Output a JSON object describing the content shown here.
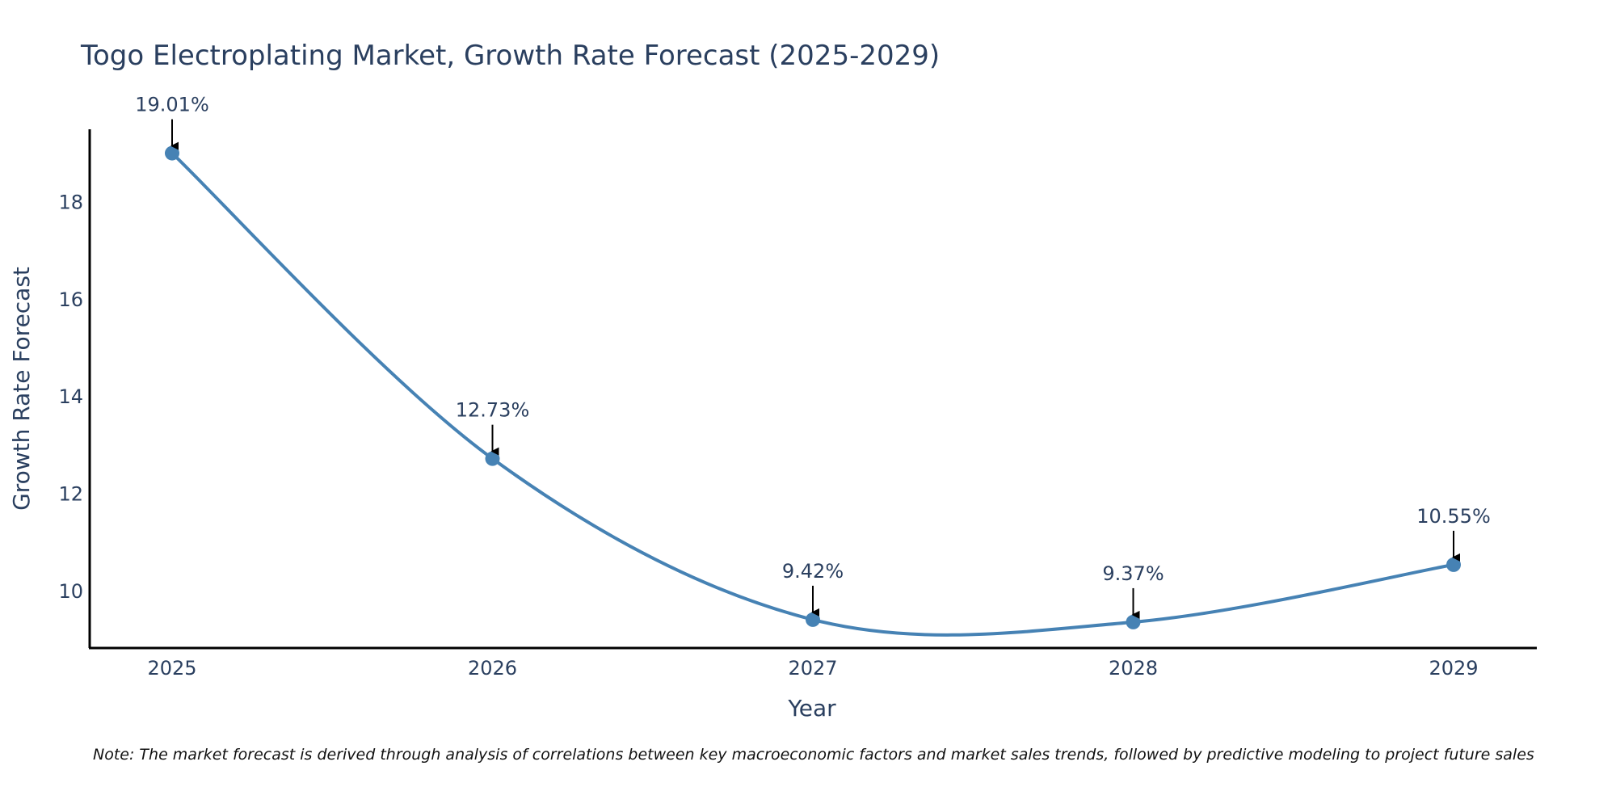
{
  "chart_data": {
    "type": "line",
    "title": "Togo Electroplating Market, Growth Rate Forecast (2025-2029)",
    "xlabel": "Year",
    "ylabel": "Growth Rate Forecast",
    "categories": [
      "2025",
      "2026",
      "2027",
      "2028",
      "2029"
    ],
    "series": [
      {
        "name": "Growth Rate Forecast",
        "values": [
          19.01,
          12.73,
          9.42,
          9.37,
          10.55
        ]
      }
    ],
    "data_labels": [
      "19.01%",
      "12.73%",
      "9.42%",
      "9.37%",
      "10.55%"
    ],
    "yticks": [
      10,
      12,
      14,
      16,
      18
    ],
    "ylim": [
      8.8,
      19.5
    ],
    "grid": false,
    "line_color": "#4682b4",
    "note": "Note: The market forecast is derived through analysis of correlations between key macroeconomic factors and market sales trends, followed by predictive modeling to project future sales"
  }
}
